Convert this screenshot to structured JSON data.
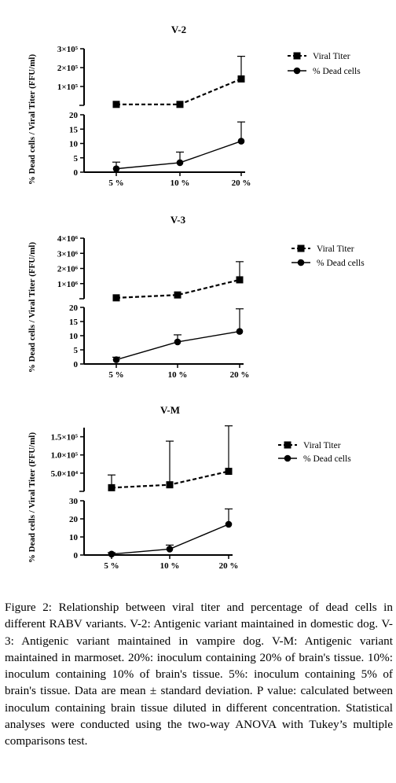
{
  "chart_data": [
    {
      "type": "line",
      "title": "V-2",
      "ylabel": "% Dead cells / Viral Titer (FFU/ml)",
      "categories": [
        "5 %",
        "10 %",
        "20 %"
      ],
      "broken_y_axis": true,
      "upper_segment": {
        "ylim": [
          0,
          300000
        ],
        "ticks": [
          100000,
          200000,
          300000
        ],
        "tick_labels": [
          "1×10⁵",
          "2×10⁵",
          "3×10⁵"
        ]
      },
      "lower_segment": {
        "ylim": [
          0,
          20
        ],
        "ticks": [
          0,
          5,
          10,
          15,
          20
        ],
        "tick_labels": [
          "0",
          "5",
          "10",
          "15",
          "20"
        ]
      },
      "series": [
        {
          "name": "Viral Titer",
          "segment": "upper",
          "marker": "square",
          "line": "dashed",
          "values": [
            5000,
            5000,
            140000
          ],
          "error": [
            0,
            0,
            120000
          ]
        },
        {
          "name": "% Dead cells",
          "segment": "lower",
          "marker": "circle",
          "line": "solid",
          "values": [
            1.2,
            3.3,
            10.8
          ],
          "error": [
            2.3,
            3.7,
            6.7
          ]
        }
      ],
      "legend": "top-right"
    },
    {
      "type": "line",
      "title": "V-3",
      "ylabel": "% Dead cells / Viral Titer (FFU/ml)",
      "categories": [
        "5 %",
        "10 %",
        "20 %"
      ],
      "broken_y_axis": true,
      "upper_segment": {
        "ylim": [
          0,
          4000000
        ],
        "ticks": [
          1000000,
          2000000,
          3000000,
          4000000
        ],
        "tick_labels": [
          "1×10⁶",
          "2×10⁶",
          "3×10⁶",
          "4×10⁶"
        ]
      },
      "lower_segment": {
        "ylim": [
          0,
          20
        ],
        "ticks": [
          0,
          5,
          10,
          15,
          20
        ],
        "tick_labels": [
          "0",
          "5",
          "10",
          "15",
          "20"
        ]
      },
      "series": [
        {
          "name": "Viral Titer",
          "segment": "upper",
          "marker": "square",
          "line": "dashed",
          "values": [
            60000,
            250000,
            1250000
          ],
          "error": [
            0,
            0,
            1200000
          ]
        },
        {
          "name": "% Dead cells",
          "segment": "lower",
          "marker": "circle",
          "line": "solid",
          "values": [
            1.5,
            7.8,
            11.5
          ],
          "error": [
            0.9,
            2.5,
            8.0
          ]
        }
      ],
      "legend": "top-right"
    },
    {
      "type": "line",
      "title": "V-M",
      "ylabel": "% Dead cells / Viral Titer (FFU/ml)",
      "categories": [
        "5 %",
        "10 %",
        "20 %"
      ],
      "broken_y_axis": true,
      "upper_segment": {
        "ylim": [
          0,
          175000
        ],
        "ticks": [
          50000,
          100000,
          150000
        ],
        "tick_labels": [
          "5.0×10⁴",
          "1.0×10⁵",
          "1.5×10⁵"
        ]
      },
      "lower_segment": {
        "ylim": [
          0,
          30
        ],
        "ticks": [
          0,
          10,
          20,
          30
        ],
        "tick_labels": [
          "0",
          "10",
          "20",
          "30"
        ]
      },
      "series": [
        {
          "name": "Viral Titer",
          "segment": "upper",
          "marker": "square",
          "line": "dashed",
          "values": [
            10000,
            18000,
            55000
          ],
          "error": [
            35000,
            120000,
            125000
          ]
        },
        {
          "name": "% Dead cells",
          "segment": "lower",
          "marker": "circle",
          "line": "solid",
          "values": [
            0.5,
            3.3,
            17.0
          ],
          "error": [
            0.8,
            2.2,
            8.5
          ]
        }
      ],
      "legend": "top-right"
    }
  ],
  "caption": {
    "label": "Figure 2:",
    "text": " Relationship between viral titer and percentage of dead cells in different RABV variants. V-2: Antigenic variant maintained in domestic dog. V-3: Antigenic variant maintained in vampire dog. V-M: Antigenic variant maintained in marmoset. 20%: inoculum containing 20% of brain's tissue. 10%: inoculum containing 10% of brain's tissue. 5%: inoculum containing 5% of brain's tissue. Data are mean ± standard deviation. P value: calculated between inoculum containing brain tissue diluted in different concentration. Statistical analyses were conducted using the two-way ANOVA with Tukey’s multiple comparisons test."
  }
}
